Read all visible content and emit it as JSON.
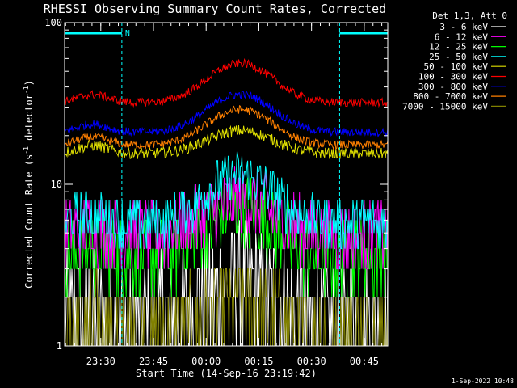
{
  "title": "RHESSI Observing Summary Count Rates, Corrected",
  "footer": "1-Sep-2022 10:48",
  "chart_data": {
    "type": "line",
    "title": "RHESSI Observing Summary Count Rates, Corrected",
    "xlabel": "Start Time (14-Sep-16 23:19:42)",
    "ylabel_main": "Corrected Count Rate (s",
    "ylabel_sup": "-1",
    "ylabel_mid": " detector",
    "ylabel_sup2": "-1",
    "ylabel_end": ")",
    "yscale": "log",
    "ylim": [
      1,
      100
    ],
    "y_ticks": [
      {
        "value": 1,
        "label": "1"
      },
      {
        "value": 10,
        "label": "10"
      },
      {
        "value": 100,
        "label": "100"
      }
    ],
    "xlim_minutes": [
      0,
      92
    ],
    "x_ticks": [
      {
        "minutes": 10.3,
        "label": "23:30"
      },
      {
        "minutes": 25.3,
        "label": "23:45"
      },
      {
        "minutes": 40.3,
        "label": "00:00"
      },
      {
        "minutes": 55.3,
        "label": "00:15"
      },
      {
        "minutes": 70.3,
        "label": "00:30"
      },
      {
        "minutes": 85.3,
        "label": "00:45"
      }
    ],
    "legend_header": "Det 1,3, Att 0",
    "legend_position": "right",
    "night_intervals_minutes": [
      [
        0,
        16.3
      ],
      [
        78.3,
        92
      ]
    ],
    "night_label": "N",
    "series": [
      {
        "name": "3 - 6 keV",
        "color": "#ffffff",
        "base": 1.4,
        "peak": 2.5,
        "noise": 0.9
      },
      {
        "name": "6 - 12 keV",
        "color": "#ff00ff",
        "base": 5.0,
        "peak": 8.0,
        "noise": 0.5
      },
      {
        "name": "12 - 25 keV",
        "color": "#00ff00",
        "base": 3.6,
        "peak": 7.0,
        "noise": 0.55
      },
      {
        "name": "25 - 50 keV",
        "color": "#00ffff",
        "base": 5.8,
        "peak": 11.5,
        "noise": 0.35
      },
      {
        "name": "50 - 100 keV",
        "color": "#e0e000",
        "base": 15.5,
        "peak": 21.5,
        "noise": 0.08
      },
      {
        "name": "100 - 300 keV",
        "color": "#ff0000",
        "base": 32,
        "peak": 56,
        "noise": 0.06
      },
      {
        "name": "300 - 800 keV",
        "color": "#0000ff",
        "base": 21,
        "peak": 36,
        "noise": 0.06
      },
      {
        "name": "800 - 7000 keV",
        "color": "#ff8000",
        "base": 17.5,
        "peak": 29,
        "noise": 0.06
      },
      {
        "name": "7000 - 15000 keV",
        "color": "#808000",
        "base": 1.3,
        "peak": 1.9,
        "noise": 0.6
      }
    ],
    "peak_center_minutes": 50,
    "peak_width_minutes": 12
  }
}
